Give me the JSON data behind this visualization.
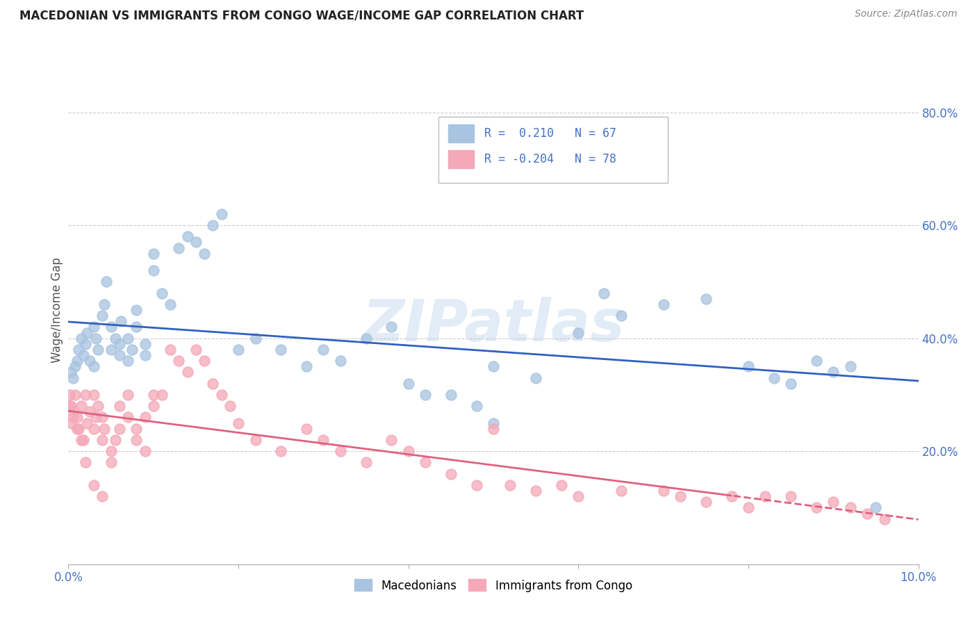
{
  "title": "MACEDONIAN VS IMMIGRANTS FROM CONGO WAGE/INCOME GAP CORRELATION CHART",
  "source": "Source: ZipAtlas.com",
  "ylabel": "Wage/Income Gap",
  "xlim": [
    0.0,
    0.1
  ],
  "ylim": [
    0.0,
    0.9
  ],
  "x_ticks": [
    0.0,
    0.02,
    0.04,
    0.06,
    0.08,
    0.1
  ],
  "x_tick_labels": [
    "0.0%",
    "",
    "",
    "",
    "",
    "10.0%"
  ],
  "y_ticks": [
    0.0,
    0.2,
    0.4,
    0.6,
    0.8
  ],
  "y_tick_labels_right": [
    "",
    "20.0%",
    "40.0%",
    "60.0%",
    "80.0%"
  ],
  "macedonian_R": 0.21,
  "macedonian_N": 67,
  "congo_R": -0.204,
  "congo_N": 78,
  "macedonian_color": "#a8c4e0",
  "congo_color": "#f4a8b8",
  "macedonian_line_color": "#3060c0",
  "congo_line_color": "#e06080",
  "legend_R_color": "#4472C4",
  "watermark": "ZIPatlas",
  "mac_x": [
    0.0003,
    0.0005,
    0.0008,
    0.001,
    0.0012,
    0.0015,
    0.0018,
    0.002,
    0.0022,
    0.0025,
    0.003,
    0.003,
    0.0032,
    0.0035,
    0.004,
    0.0042,
    0.0045,
    0.005,
    0.005,
    0.0055,
    0.006,
    0.006,
    0.0062,
    0.007,
    0.007,
    0.0075,
    0.008,
    0.008,
    0.009,
    0.009,
    0.01,
    0.01,
    0.011,
    0.012,
    0.013,
    0.014,
    0.015,
    0.016,
    0.017,
    0.018,
    0.02,
    0.022,
    0.025,
    0.028,
    0.03,
    0.032,
    0.035,
    0.038,
    0.04,
    0.042,
    0.045,
    0.048,
    0.05,
    0.05,
    0.055,
    0.06,
    0.063,
    0.065,
    0.07,
    0.075,
    0.08,
    0.083,
    0.085,
    0.088,
    0.09,
    0.092,
    0.095
  ],
  "mac_y": [
    0.34,
    0.33,
    0.35,
    0.36,
    0.38,
    0.4,
    0.37,
    0.39,
    0.41,
    0.36,
    0.35,
    0.42,
    0.4,
    0.38,
    0.44,
    0.46,
    0.5,
    0.38,
    0.42,
    0.4,
    0.37,
    0.39,
    0.43,
    0.36,
    0.4,
    0.38,
    0.42,
    0.45,
    0.37,
    0.39,
    0.55,
    0.52,
    0.48,
    0.46,
    0.56,
    0.58,
    0.57,
    0.55,
    0.6,
    0.62,
    0.38,
    0.4,
    0.38,
    0.35,
    0.38,
    0.36,
    0.4,
    0.42,
    0.32,
    0.3,
    0.3,
    0.28,
    0.35,
    0.25,
    0.33,
    0.41,
    0.48,
    0.44,
    0.46,
    0.47,
    0.35,
    0.33,
    0.32,
    0.36,
    0.34,
    0.35,
    0.1
  ],
  "con_x": [
    0.0002,
    0.0004,
    0.0006,
    0.0008,
    0.001,
    0.0012,
    0.0015,
    0.0018,
    0.002,
    0.0022,
    0.0025,
    0.003,
    0.003,
    0.0032,
    0.0035,
    0.004,
    0.004,
    0.0042,
    0.005,
    0.005,
    0.0055,
    0.006,
    0.006,
    0.007,
    0.007,
    0.008,
    0.008,
    0.009,
    0.009,
    0.01,
    0.01,
    0.011,
    0.012,
    0.013,
    0.014,
    0.015,
    0.016,
    0.017,
    0.018,
    0.019,
    0.02,
    0.022,
    0.025,
    0.028,
    0.03,
    0.032,
    0.035,
    0.038,
    0.04,
    0.042,
    0.045,
    0.048,
    0.05,
    0.052,
    0.055,
    0.058,
    0.06,
    0.065,
    0.07,
    0.072,
    0.075,
    0.078,
    0.08,
    0.082,
    0.085,
    0.088,
    0.09,
    0.092,
    0.094,
    0.096,
    0.0001,
    0.0003,
    0.0005,
    0.001,
    0.0015,
    0.002,
    0.003,
    0.004
  ],
  "con_y": [
    0.28,
    0.25,
    0.27,
    0.3,
    0.26,
    0.24,
    0.28,
    0.22,
    0.3,
    0.25,
    0.27,
    0.24,
    0.3,
    0.26,
    0.28,
    0.22,
    0.26,
    0.24,
    0.2,
    0.18,
    0.22,
    0.24,
    0.28,
    0.3,
    0.26,
    0.22,
    0.24,
    0.2,
    0.26,
    0.3,
    0.28,
    0.3,
    0.38,
    0.36,
    0.34,
    0.38,
    0.36,
    0.32,
    0.3,
    0.28,
    0.25,
    0.22,
    0.2,
    0.24,
    0.22,
    0.2,
    0.18,
    0.22,
    0.2,
    0.18,
    0.16,
    0.14,
    0.24,
    0.14,
    0.13,
    0.14,
    0.12,
    0.13,
    0.13,
    0.12,
    0.11,
    0.12,
    0.1,
    0.12,
    0.12,
    0.1,
    0.11,
    0.1,
    0.09,
    0.08,
    0.3,
    0.28,
    0.26,
    0.24,
    0.22,
    0.18,
    0.14,
    0.12
  ]
}
